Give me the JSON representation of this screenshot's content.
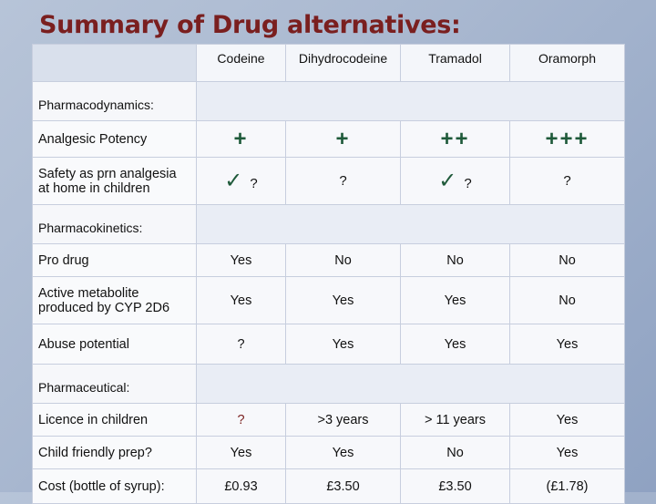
{
  "title": "Summary of Drug alternatives:",
  "columns": [
    "Codeine",
    "Dihydrocodeine",
    "Tramadol",
    "Oramorph"
  ],
  "sections": {
    "pharmacodynamics": "Pharmacodynamics:",
    "pharmacokinetics": "Pharmacokinetics:",
    "pharmaceutical": "Pharmaceutical:"
  },
  "rows": {
    "analgesic": {
      "label": "Analgesic Potency",
      "values": [
        "+",
        "+",
        "++",
        "+++"
      ]
    },
    "safety": {
      "label": "Safety as prn analgesia at home in children",
      "values": [
        "✓ ?",
        "?",
        "✓ ?",
        "?"
      ]
    },
    "prodrug": {
      "label": "Pro drug",
      "values": [
        "Yes",
        "No",
        "No",
        "No"
      ]
    },
    "metabolite": {
      "label": "Active metabolite produced by CYP 2D6",
      "values": [
        "Yes",
        "Yes",
        "Yes",
        "No"
      ]
    },
    "abuse": {
      "label": "Abuse potential",
      "values": [
        "?",
        "Yes",
        "Yes",
        "Yes"
      ]
    },
    "licence": {
      "label": "Licence in children",
      "values": [
        "?",
        ">3 years",
        "> 11 years",
        "Yes"
      ]
    },
    "prep": {
      "label": "Child friendly prep?",
      "values": [
        "Yes",
        "Yes",
        "No",
        "Yes"
      ]
    },
    "cost": {
      "label": "Cost (bottle of syrup):",
      "values": [
        "£0.93",
        "£3.50",
        "£3.50",
        "(£1.78)"
      ]
    }
  },
  "colors": {
    "title": "#7a1f1f",
    "symbol": "#1f5a3a",
    "question": "#7a1f1f"
  }
}
